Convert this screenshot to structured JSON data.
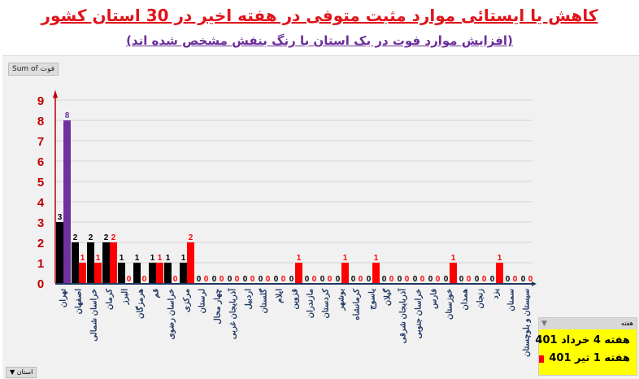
{
  "title": "کاهش یا ایستائی موارد مثبت متوفی در هفته اخیر در 30 استان کشور",
  "subtitle": "(افزایش موارد فوت در یک استان با رنگ بنفش مشخص شده اند)",
  "sum_button": "Sum of فوت",
  "province_filter": "استان",
  "legend": {
    "header": "هفته",
    "items": [
      "هفته 4 خرداد 401",
      "هفته 1 تیر 401"
    ]
  },
  "colors": {
    "week1": "#000000",
    "week2": "#ff0000",
    "increase": "#7030a0",
    "axis": "#c00000",
    "baseline": "#1f3864",
    "label": "#1f3864"
  },
  "chart_data": {
    "type": "bar",
    "ylim": [
      0,
      9
    ],
    "yticks": [
      0,
      1,
      2,
      3,
      4,
      5,
      6,
      7,
      8,
      9
    ],
    "grid": true,
    "legend": "bottom-right",
    "categories": [
      "تهران",
      "اصفهان",
      "خراسان شمالی",
      "کرمان",
      "البرز",
      "هرمزگان",
      "قم",
      "خراسان رضوی",
      "مرکزی",
      "لرستان",
      "چهار محال",
      "آذربایجان غربی",
      "اردبیل",
      "گلستان",
      "ایلام",
      "قزوین",
      "مازندران",
      "کردستان",
      "بوشهر",
      "کرمانشاه",
      "یاسوج",
      "گیلان",
      "آذربایجان شرقی",
      "خراسان جنوبی",
      "فارس",
      "خوزستان",
      "همدان",
      "زنجان",
      "یزد",
      "سمنان",
      "سیستان و بلوچستان"
    ],
    "series": [
      {
        "name": "هفته 4 خرداد 401",
        "values": [
          3,
          2,
          2,
          2,
          1,
          1,
          1,
          1,
          1,
          0,
          0,
          0,
          0,
          0,
          0,
          0,
          0,
          0,
          0,
          0,
          0,
          0,
          0,
          0,
          0,
          0,
          0,
          0,
          0,
          0,
          0
        ]
      },
      {
        "name": "هفته 1 تیر 401",
        "values": [
          8,
          1,
          1,
          2,
          0,
          0,
          1,
          0,
          2,
          0,
          0,
          0,
          0,
          0,
          0,
          1,
          0,
          0,
          1,
          0,
          1,
          0,
          0,
          0,
          0,
          1,
          0,
          0,
          1,
          0,
          0
        ],
        "highlight_increase": [
          0
        ]
      }
    ]
  }
}
